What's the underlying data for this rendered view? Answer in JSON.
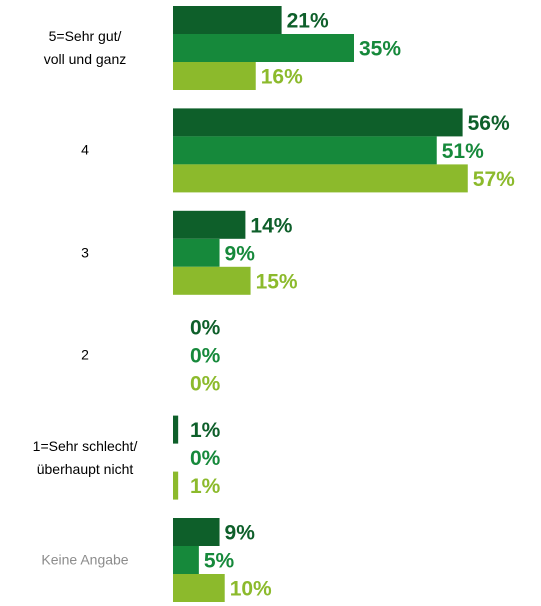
{
  "chart_data": {
    "type": "bar",
    "orientation": "horizontal",
    "categories": [
      "5=Sehr gut/\nvoll und ganz",
      "4",
      "3",
      "2",
      "1=Sehr schlecht/\nüberhaupt nicht",
      "Keine Angabe"
    ],
    "category_label_colors": [
      "#000000",
      "#000000",
      "#000000",
      "#000000",
      "#000000",
      "#8c8c8c"
    ],
    "series": [
      {
        "color": "#0e5f2a",
        "values": [
          21,
          56,
          14,
          0,
          1,
          9
        ],
        "value_labels": [
          "21%",
          "56%",
          "14%",
          "0%",
          "1%",
          "9%"
        ]
      },
      {
        "color": "#16893b",
        "values": [
          35,
          51,
          9,
          0,
          0,
          5
        ],
        "value_labels": [
          "35%",
          "51%",
          "9%",
          "0%",
          "0%",
          "5%"
        ]
      },
      {
        "color": "#8cba2c",
        "values": [
          16,
          57,
          15,
          0,
          1,
          10
        ],
        "value_labels": [
          "16%",
          "57%",
          "15%",
          "0%",
          "1%",
          "10%"
        ]
      }
    ],
    "xlim": [
      0,
      70
    ]
  }
}
